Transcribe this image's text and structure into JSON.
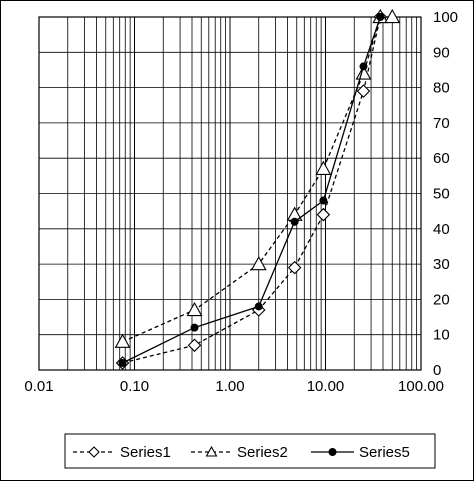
{
  "chart_data": {
    "type": "line",
    "x_scale": "log",
    "xlim": [
      0.01,
      100.0
    ],
    "ylim": [
      0,
      100
    ],
    "grid": true,
    "legend_position": "bottom",
    "x_tick_labels": [
      "0.01",
      "0.10",
      "1.00",
      "10.00",
      "100.00"
    ],
    "y_tick_labels": [
      "0",
      "10",
      "20",
      "30",
      "40",
      "50",
      "60",
      "70",
      "80",
      "90",
      "100"
    ],
    "series": [
      {
        "name": "Series1",
        "line_style": "dashed",
        "marker": "diamond",
        "x": [
          0.075,
          0.425,
          2.0,
          4.75,
          9.5,
          25.0,
          37.5
        ],
        "y": [
          2,
          7,
          17,
          29,
          44,
          79,
          100
        ]
      },
      {
        "name": "Series2",
        "line_style": "dashed",
        "marker": "triangle",
        "x": [
          0.075,
          0.425,
          2.0,
          4.75,
          9.5,
          25.0,
          37.5,
          50.0
        ],
        "y": [
          8,
          17,
          30,
          44,
          57,
          84,
          100,
          100
        ]
      },
      {
        "name": "Series5",
        "line_style": "solid",
        "marker": "filled-circle",
        "x": [
          0.075,
          0.425,
          2.0,
          4.75,
          9.5,
          25.0,
          37.5
        ],
        "y": [
          2,
          12,
          18,
          42,
          48,
          86,
          100
        ]
      }
    ]
  }
}
